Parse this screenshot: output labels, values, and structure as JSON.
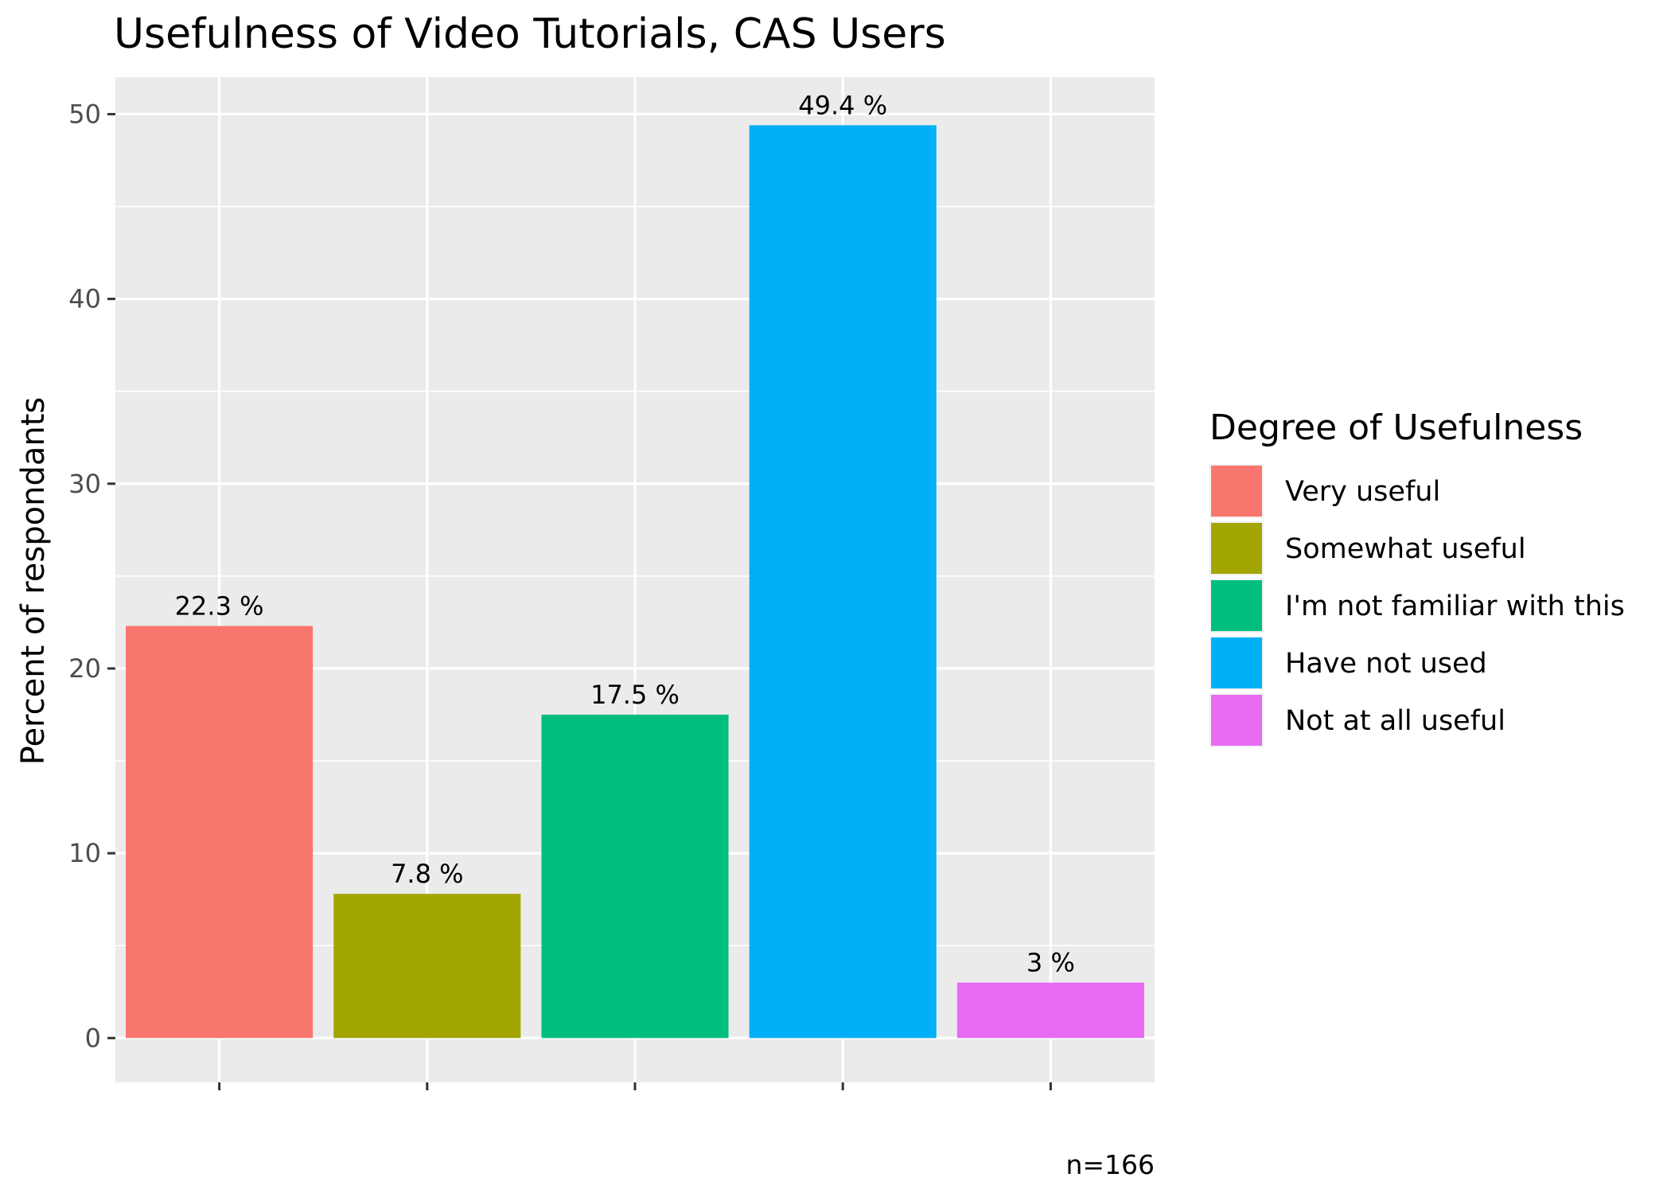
{
  "chart_data": {
    "type": "bar",
    "title": "Usefulness of Video Tutorials,  CAS Users",
    "xlabel": "",
    "ylabel": "Percent of respondants",
    "ylim": [
      -2.4,
      52
    ],
    "yticks": [
      0,
      10,
      20,
      30,
      40,
      50
    ],
    "categories": [
      "Very useful",
      "Somewhat useful",
      "I'm not familiar with this",
      "Have not used",
      "Not at all useful"
    ],
    "values": [
      22.3,
      7.8,
      17.5,
      49.4,
      3
    ],
    "data_labels": [
      "22.3 %",
      "7.8 %",
      "17.5 %",
      "49.4 %",
      "3 %"
    ],
    "colors": [
      "#F8766D",
      "#A3A500",
      "#00BF7D",
      "#00B0F6",
      "#E76BF3"
    ],
    "legend": {
      "title": "Degree of Usefulness",
      "placement": "right",
      "entries": [
        "Very useful",
        "Somewhat useful",
        "I'm not familiar with this",
        "Have not used",
        "Not at all useful"
      ]
    },
    "grid": true,
    "panel_background": "#EBEBEB",
    "caption": "n=166"
  }
}
